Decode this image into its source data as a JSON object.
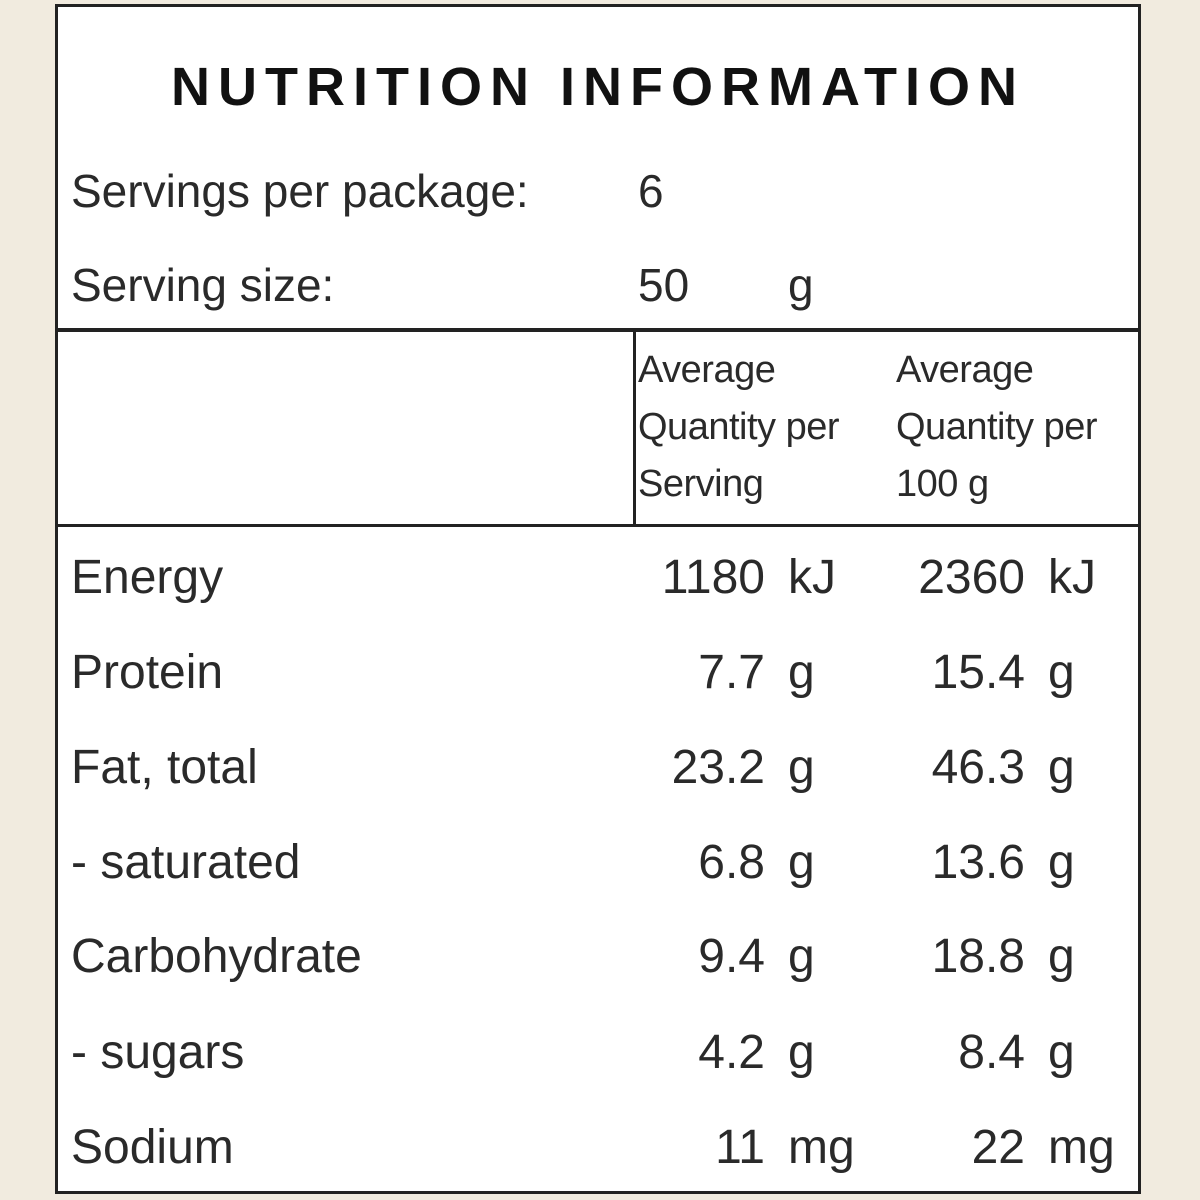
{
  "title": "NUTRITION INFORMATION",
  "servings": {
    "label": "Servings per package:",
    "value": "6"
  },
  "serving_size": {
    "label": "Serving size:",
    "value": "50",
    "unit": "g"
  },
  "columns": {
    "per_serving": [
      "Average",
      "Quantity per",
      "Serving"
    ],
    "per_100g": [
      "Average",
      "Quantity per",
      "100 g"
    ]
  },
  "rows": [
    {
      "label": "Energy",
      "serving": "1180",
      "serving_unit": "kJ",
      "per100": "2360",
      "per100_unit": "kJ"
    },
    {
      "label": "Protein",
      "serving": "7.7",
      "serving_unit": "g",
      "per100": "15.4",
      "per100_unit": "g"
    },
    {
      "label": "Fat, total",
      "serving": "23.2",
      "serving_unit": "g",
      "per100": "46.3",
      "per100_unit": "g"
    },
    {
      "label": "- saturated",
      "serving": "6.8",
      "serving_unit": "g",
      "per100": "13.6",
      "per100_unit": "g"
    },
    {
      "label": "Carbohydrate",
      "serving": "9.4",
      "serving_unit": "g",
      "per100": "18.8",
      "per100_unit": "g"
    },
    {
      "label": "- sugars",
      "serving": "4.2",
      "serving_unit": "g",
      "per100": "8.4",
      "per100_unit": "g"
    },
    {
      "label": "Sodium",
      "serving": "11",
      "serving_unit": "mg",
      "per100": "22",
      "per100_unit": "mg"
    }
  ]
}
